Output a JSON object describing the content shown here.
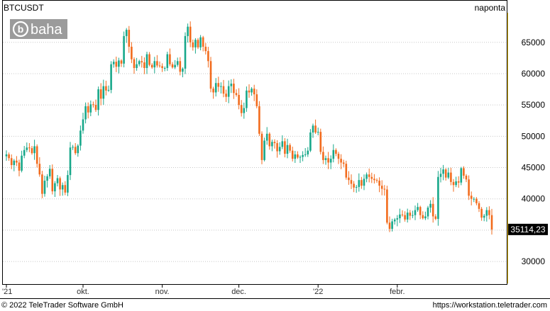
{
  "chart_data": {
    "type": "candlestick",
    "title": "BTCUSDT",
    "interval_label": "naponta",
    "watermark_text": "baha",
    "last_price_label": "35114,23",
    "last_price": 35114.23,
    "ylim": [
      26500,
      69500
    ],
    "y_ticks": [
      30000,
      35000,
      40000,
      45000,
      50000,
      55000,
      60000,
      65000
    ],
    "y_tick_labels": [
      "30000",
      "35000",
      "40000",
      "45000",
      "50000",
      "55000",
      "60000",
      "65000"
    ],
    "x_ticks": [
      {
        "label": "'21",
        "day": 0
      },
      {
        "label": "okt.",
        "day": 30
      },
      {
        "label": "nov.",
        "day": 61
      },
      {
        "label": "dec.",
        "day": 91
      },
      {
        "label": "'22",
        "day": 122
      },
      {
        "label": "febr.",
        "day": 153
      }
    ],
    "grid": true,
    "colors": {
      "up": "#18a88a",
      "down": "#f26b1d",
      "last_price_bg": "#000000",
      "right_axis_line": "#f0c419",
      "frame": "#000000"
    },
    "closes": [
      47100,
      46500,
      45400,
      46100,
      45800,
      44500,
      46900,
      47800,
      48200,
      48100,
      47300,
      48400,
      45600,
      43900,
      40800,
      42900,
      43600,
      44800,
      41200,
      42500,
      43300,
      41500,
      42200,
      41000,
      43800,
      48200,
      48300,
      47300,
      48500,
      50900,
      52700,
      54800,
      53800,
      55100,
      55000,
      54200,
      57500,
      56000,
      58000,
      57300,
      57400,
      61500,
      61900,
      61100,
      62100,
      61600,
      66000,
      67000,
      64300,
      62300,
      60900,
      61500,
      62000,
      61800,
      60900,
      63100,
      61400,
      61000,
      62000,
      61300,
      61200,
      60900,
      60900,
      63100,
      61500,
      61000,
      61400,
      62000,
      60300,
      60800,
      66000,
      67500,
      65000,
      64200,
      65400,
      64200,
      65800,
      64300,
      63600,
      62000,
      57600,
      57000,
      58500,
      57900,
      58000,
      56800,
      56300,
      58000,
      58400,
      56900,
      56600,
      55000,
      53700,
      54500,
      57300,
      57000,
      57600,
      56700,
      54800,
      50400,
      46200,
      49300,
      50400,
      48400,
      49100,
      48900,
      47600,
      48300,
      49200,
      47200,
      48600,
      47700,
      46400,
      47100,
      46600,
      46700,
      47000,
      47100,
      47700,
      50600,
      51700,
      50600,
      50700,
      47500,
      46200,
      46500,
      45800,
      46400,
      47800,
      47200,
      46400,
      45800,
      45600,
      43400,
      43000,
      42400,
      41800,
      41900,
      43000,
      42100,
      43200,
      43900,
      43500,
      43200,
      43000,
      42900,
      42100,
      41600,
      41500,
      36200,
      35200,
      36400,
      36700,
      36900,
      37500,
      37400,
      36700,
      37800,
      37300,
      37400,
      38200,
      38700,
      37400,
      36900,
      37200,
      38600,
      39200,
      37200,
      36800,
      43500,
      44000,
      44700,
      43400,
      44200,
      42700,
      42200,
      42800,
      42600,
      44900,
      43700,
      43100,
      40500,
      40000,
      40000,
      39300,
      38400,
      37000,
      37300,
      38200,
      37400,
      35100
    ],
    "range_first_day_label": "'21",
    "range_last_day_label": "febr."
  },
  "footer": {
    "copyright": "© 2022 TeleTrader Software GmbH",
    "url": "https://workstation.teletrader.com"
  }
}
